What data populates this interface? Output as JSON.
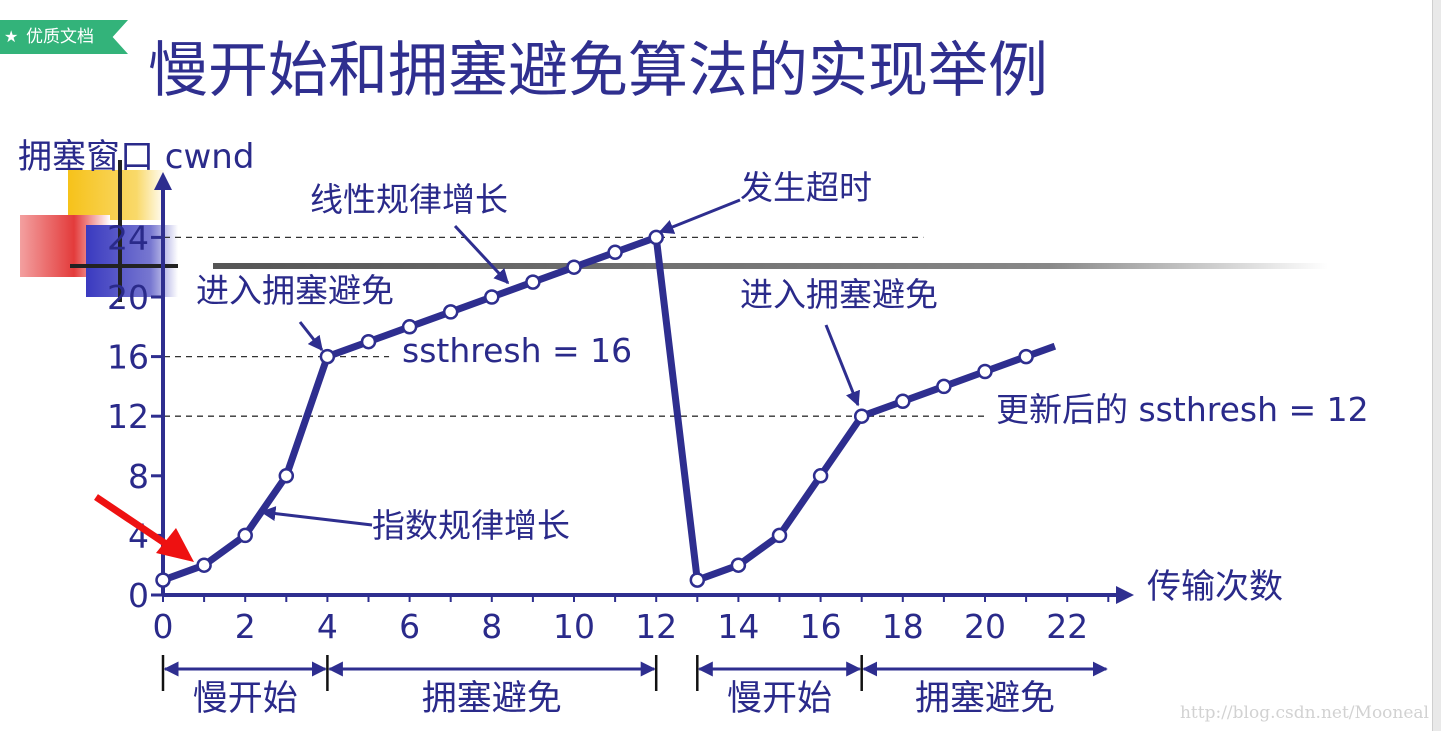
{
  "badge": {
    "text": "优质文档",
    "icon": "star-icon"
  },
  "title": "慢开始和拥塞避免算法的实现举例",
  "watermark": "http://blog.csdn.net/Mooneal",
  "colors": {
    "series": "#2e2e8f",
    "text": "#2a2a8a",
    "badge": "#33b37a",
    "arrow": "#ee1111"
  },
  "chart_data": {
    "type": "line",
    "ylabel": "拥塞窗口 cwnd",
    "xlabel": "传输次数",
    "xlim": [
      0,
      22
    ],
    "ylim": [
      0,
      24
    ],
    "x_ticks": [
      "0",
      "2",
      "4",
      "6",
      "8",
      "10",
      "12",
      "14",
      "16",
      "18",
      "20",
      "22"
    ],
    "y_ticks": [
      "0",
      "4",
      "8",
      "12",
      "16",
      "20",
      "24"
    ],
    "series": [
      {
        "x": [
          0,
          1,
          2,
          3,
          4,
          5,
          6,
          7,
          8,
          9,
          10,
          11,
          12,
          13,
          14,
          15,
          16,
          17,
          18,
          19,
          20,
          21
        ],
        "values": [
          1,
          2,
          4,
          8,
          16,
          17,
          18,
          19,
          20,
          21,
          22,
          23,
          24,
          1,
          2,
          4,
          8,
          12,
          13,
          14,
          15,
          16
        ]
      }
    ],
    "reference_lines": [
      {
        "y": 24,
        "x_to": 18.5
      },
      {
        "y": 16,
        "x_to": 5.5
      },
      {
        "y": 12,
        "x_to": 20
      }
    ],
    "annotations": [
      {
        "text": "线性规律增长"
      },
      {
        "text": "发生超时"
      },
      {
        "text": "进入拥塞避免"
      },
      {
        "text": "ssthresh = 16"
      },
      {
        "text": "进入拥塞避免"
      },
      {
        "text": "更新后的 ssthresh = 12"
      },
      {
        "text": "指数规律增长"
      }
    ],
    "phases": [
      {
        "label": "慢开始",
        "x_from": 0,
        "x_to": 4
      },
      {
        "label": "拥塞避免",
        "x_from": 4,
        "x_to": 12
      },
      {
        "label": "慢开始",
        "x_from": 13,
        "x_to": 17
      },
      {
        "label": "拥塞避免",
        "x_from": 17,
        "x_to": 23
      }
    ]
  }
}
